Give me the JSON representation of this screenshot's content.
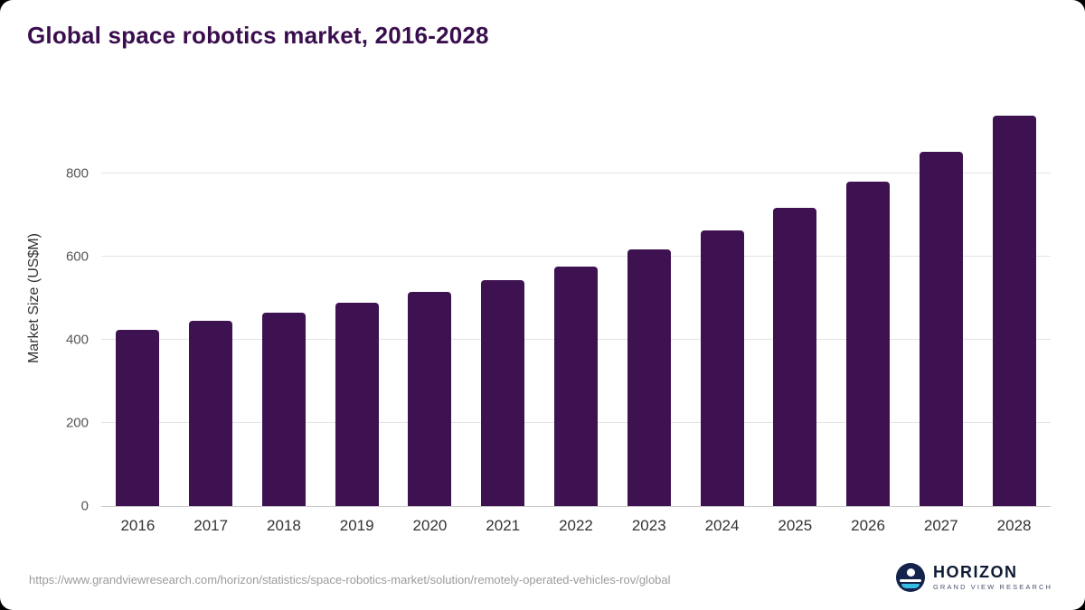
{
  "title": "Global space robotics market, 2016-2028",
  "chart_data": {
    "type": "bar",
    "categories": [
      "2016",
      "2017",
      "2018",
      "2019",
      "2020",
      "2021",
      "2022",
      "2023",
      "2024",
      "2025",
      "2026",
      "2027",
      "2028"
    ],
    "values": [
      425,
      445,
      466,
      489,
      516,
      543,
      577,
      617,
      662,
      717,
      780,
      852,
      940
    ],
    "title": "Global space robotics market, 2016-2028",
    "xlabel": "",
    "ylabel": "Market Size (US$M)",
    "ylim": [
      0,
      1000
    ],
    "yticks": [
      0,
      200,
      400,
      600,
      800
    ],
    "grid": true,
    "legend": false,
    "bar_color": "#3e1151"
  },
  "footer": {
    "source_url": "https://www.grandviewresearch.com/horizon/statistics/space-robotics-market/solution/remotely-operated-vehicles-rov/global",
    "logo": {
      "name": "HORIZON",
      "subtitle": "GRAND VIEW RESEARCH"
    }
  },
  "colors": {
    "title_text": "#3a0e4e",
    "bar": "#3e1151",
    "gridline": "#e4e4e4",
    "axis_text": "#555555",
    "url_text": "#9b9b9b",
    "logo_navy": "#14234c",
    "logo_cyan": "#35bde4"
  }
}
